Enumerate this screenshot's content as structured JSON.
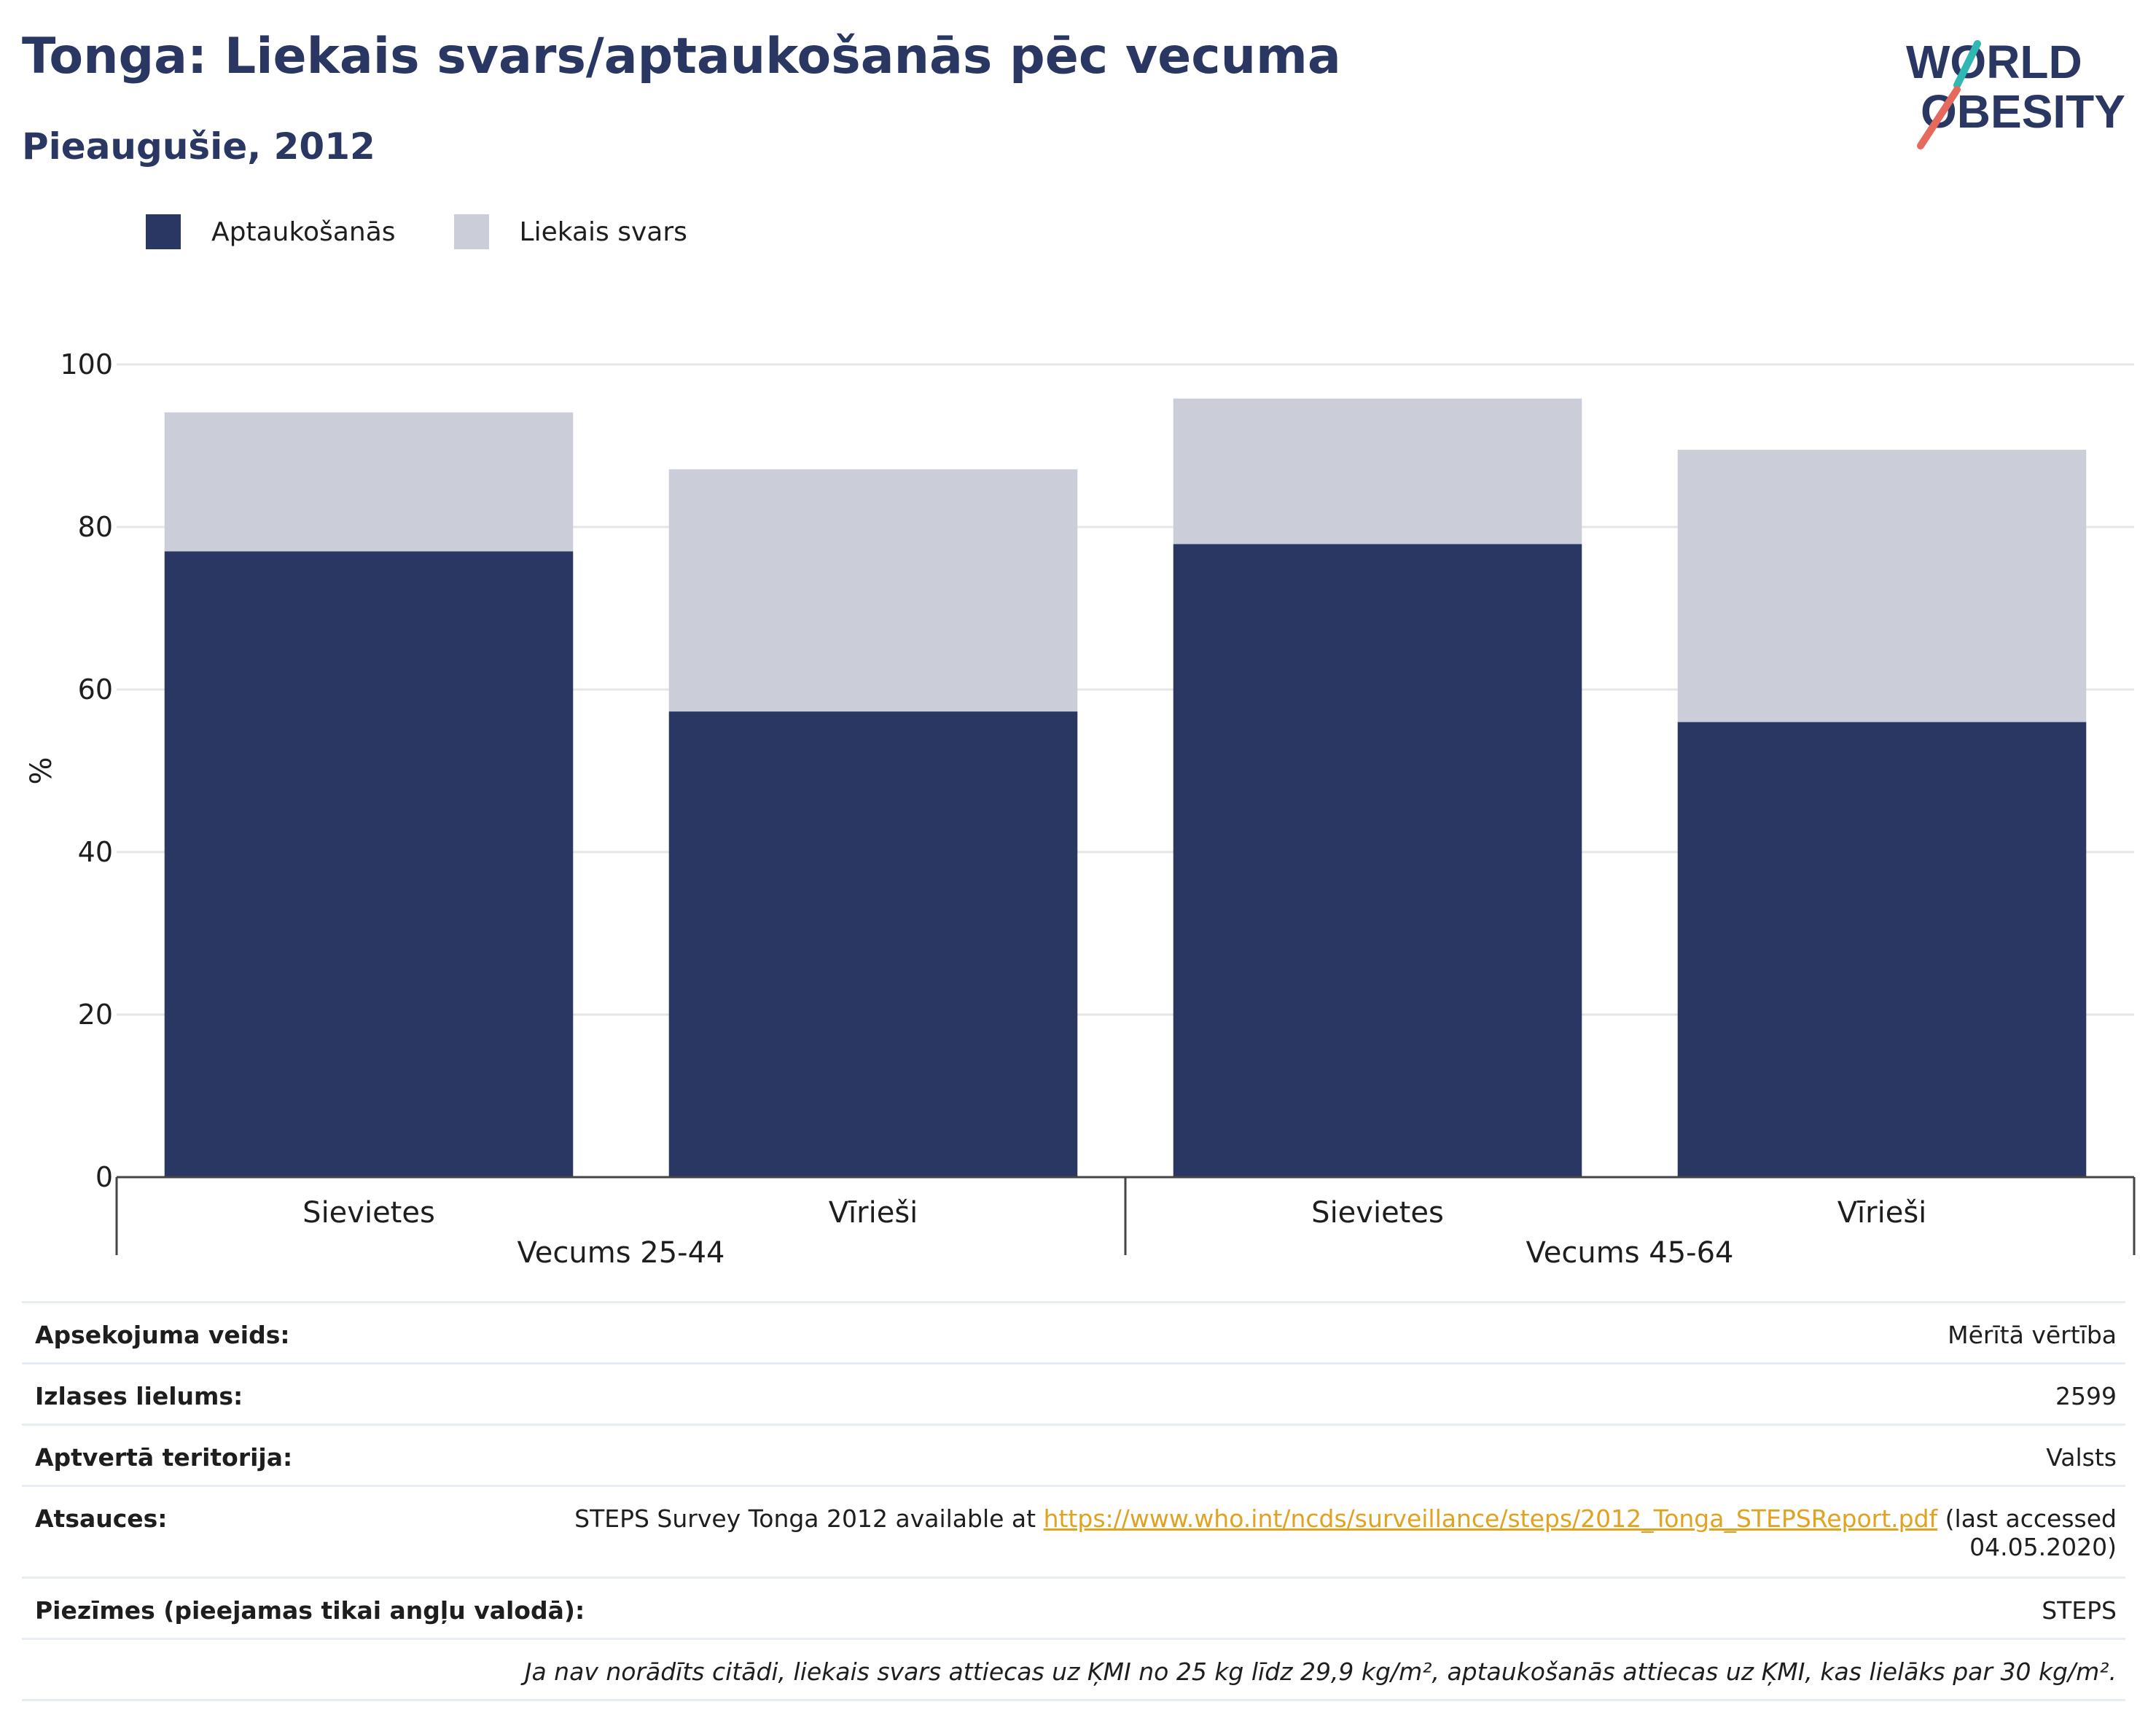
{
  "header": {
    "title": "Tonga: Liekais svars/aptaukošanās pēc vecuma",
    "subtitle": "Pieaugušie, 2012"
  },
  "logo": {
    "line1": "WORLD",
    "line2": "OBESITY"
  },
  "colors": {
    "obesity": "#2b3763",
    "overweight": "#cbcdd8",
    "accent": "#e0a321",
    "title": "#2b3763"
  },
  "chart_data": {
    "type": "bar",
    "stacked": true,
    "categories": [
      "Sievietes",
      "Vīrieši",
      "Sievietes",
      "Vīrieši"
    ],
    "groups": [
      {
        "label": "Vecums 25-44",
        "categories": [
          "Sievietes",
          "Vīrieši"
        ]
      },
      {
        "label": "Vecums 45-64",
        "categories": [
          "Sievietes",
          "Vīrieši"
        ]
      }
    ],
    "series": [
      {
        "name": "Aptaukošanās",
        "values": [
          77,
          57.3,
          77.9,
          56
        ],
        "color": "#2b3763"
      },
      {
        "name": "Liekais svars",
        "values": [
          17.1,
          29.8,
          17.9,
          33.5
        ],
        "color": "#cbcdd8"
      }
    ],
    "ylabel": "%",
    "ylim": [
      0,
      100
    ],
    "yticks": [
      0,
      20,
      40,
      60,
      80,
      100
    ],
    "grid": true,
    "legend": "top-left"
  },
  "info": {
    "survey_type_label": "Apsekojuma veids:",
    "survey_type_value": "Mērītā vērtība",
    "sample_size_label": "Izlases lielums:",
    "sample_size_value": "2599",
    "coverage_label": "Aptvertā teritorija:",
    "coverage_value": "Valsts",
    "references_label": "Atsauces:",
    "references_prefix": "STEPS Survey Tonga 2012 available at ",
    "references_link": "https://www.who.int/ncds/surveillance/steps/2012_Tonga_STEPSReport.pdf",
    "references_suffix": " (last accessed",
    "references_date": "04.05.2020)",
    "notes_label": "Piezīmes (pieejamas tikai angļu valodā):",
    "notes_value": "STEPS",
    "footnote": "Ja nav norādīts citādi, liekais svars attiecas uz ĶMI no 25 kg līdz 29,9 kg/m², aptaukošanās attiecas uz ĶMI, kas lielāks par 30 kg/m²."
  }
}
